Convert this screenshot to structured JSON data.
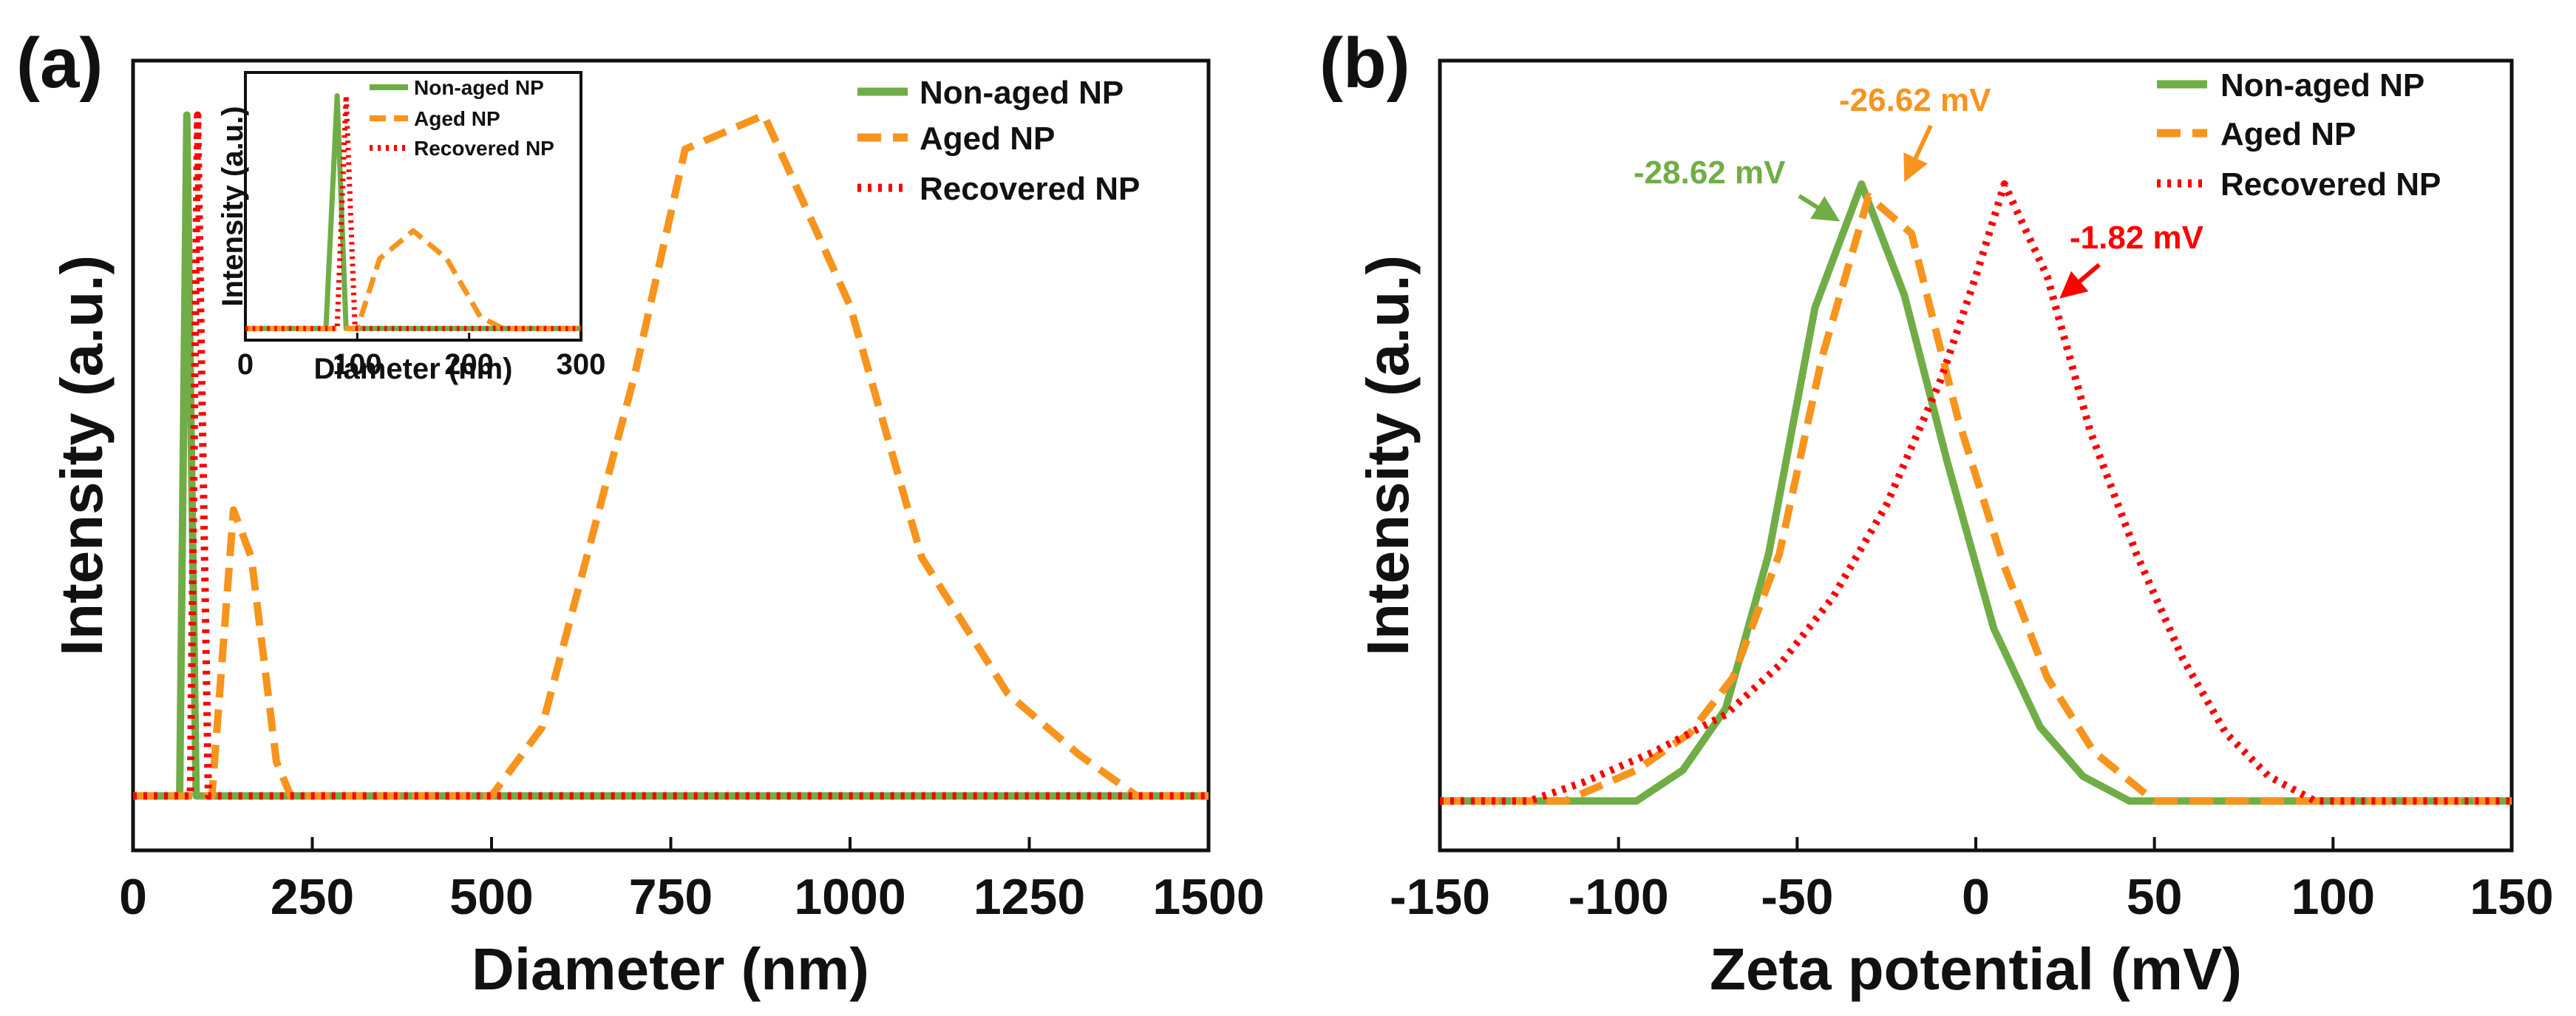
{
  "colors": {
    "non_aged": "#70ad47",
    "aged": "#f7941d",
    "recovered": "#ff0000",
    "axis": "#111111"
  },
  "chart_data": [
    {
      "panel": "(a)",
      "type": "line",
      "xlabel": "Diameter (nm)",
      "ylabel": "Intensity (a.u.)",
      "xlim": [
        0,
        1500
      ],
      "ylim": [
        -0.08,
        1.08
      ],
      "xticks": [
        "0",
        "250",
        "500",
        "750",
        "1000",
        "1250",
        "1500"
      ],
      "xtick_values": [
        0,
        250,
        500,
        750,
        1000,
        1250,
        1500
      ],
      "legend": [
        "Non-aged NP",
        "Aged NP",
        "Recovered NP"
      ],
      "legend_position": "top-right",
      "series": [
        {
          "name": "Non-aged NP",
          "style": "solid",
          "x": [
            0,
            65,
            75,
            88,
            100,
            1500
          ],
          "y": [
            0,
            0,
            1.0,
            0,
            0,
            0
          ]
        },
        {
          "name": "Aged NP",
          "style": "dashed",
          "x": [
            0,
            110,
            140,
            165,
            200,
            220,
            500,
            570,
            700,
            770,
            880,
            1000,
            1100,
            1220,
            1320,
            1400,
            1500
          ],
          "y": [
            0,
            0,
            0.42,
            0.35,
            0.05,
            0,
            0,
            0.1,
            0.62,
            0.95,
            1.0,
            0.72,
            0.35,
            0.15,
            0.06,
            0,
            0
          ]
        },
        {
          "name": "Recovered NP",
          "style": "dotted",
          "x": [
            0,
            80,
            90,
            105,
            120,
            1500
          ],
          "y": [
            0,
            0,
            1.0,
            0,
            0,
            0
          ]
        }
      ],
      "inset": {
        "xlabel": "Diameter (nm)",
        "ylabel": "Intensity (a.u.)",
        "xlim": [
          0,
          300
        ],
        "ylim": [
          -0.05,
          1.1
        ],
        "xticks": [
          "0",
          "100",
          "200",
          "300"
        ],
        "xtick_values": [
          0,
          100,
          200,
          300
        ],
        "legend": [
          "Non-aged NP",
          "Aged NP",
          "Recovered NP"
        ],
        "legend_position": "top-right",
        "series": [
          {
            "name": "Non-aged NP",
            "style": "solid",
            "x": [
              0,
              72,
              82,
              90,
              300
            ],
            "y": [
              0,
              0,
              1.0,
              0,
              0
            ]
          },
          {
            "name": "Aged NP",
            "style": "dashed",
            "x": [
              0,
              100,
              120,
              150,
              180,
              210,
              230,
              300
            ],
            "y": [
              0,
              0,
              0.3,
              0.42,
              0.3,
              0.05,
              0,
              0
            ]
          },
          {
            "name": "Recovered NP",
            "style": "dotted",
            "x": [
              0,
              82,
              90,
              98,
              300
            ],
            "y": [
              0,
              0,
              1.0,
              0,
              0
            ]
          }
        ]
      }
    },
    {
      "panel": "(b)",
      "type": "line",
      "xlabel": "Zeta potential (mV)",
      "ylabel": "Intensity (a.u.)",
      "xlim": [
        -150,
        150
      ],
      "ylim": [
        -0.08,
        1.2
      ],
      "xticks": [
        "-150",
        "-100",
        "-50",
        "0",
        "50",
        "100",
        "150"
      ],
      "xtick_values": [
        -150,
        -100,
        -50,
        0,
        50,
        100,
        150
      ],
      "legend": [
        "Non-aged NP",
        "Aged NP",
        "Recovered NP"
      ],
      "legend_position": "top-right",
      "series": [
        {
          "name": "Non-aged NP",
          "style": "solid",
          "x": [
            -150,
            -95,
            -82,
            -70,
            -58,
            -45,
            -32,
            -20,
            -8,
            5,
            18,
            30,
            43,
            150
          ],
          "y": [
            0,
            0,
            0.05,
            0.15,
            0.4,
            0.8,
            1.0,
            0.82,
            0.55,
            0.28,
            0.12,
            0.04,
            0,
            0
          ]
        },
        {
          "name": "Aged NP",
          "style": "dashed",
          "x": [
            -150,
            -115,
            -95,
            -80,
            -68,
            -55,
            -43,
            -30,
            -18,
            -5,
            8,
            20,
            33,
            50,
            150
          ],
          "y": [
            0,
            0,
            0.05,
            0.11,
            0.2,
            0.4,
            0.72,
            0.98,
            0.92,
            0.62,
            0.38,
            0.2,
            0.08,
            0,
            0
          ]
        },
        {
          "name": "Recovered NP",
          "style": "dotted",
          "x": [
            -150,
            -125,
            -110,
            -90,
            -70,
            -55,
            -40,
            -25,
            -10,
            0,
            8,
            20,
            32,
            45,
            58,
            70,
            82,
            95,
            150
          ],
          "y": [
            0,
            0,
            0.03,
            0.08,
            0.14,
            0.22,
            0.33,
            0.48,
            0.68,
            0.85,
            1.0,
            0.85,
            0.6,
            0.4,
            0.23,
            0.11,
            0.04,
            0,
            0
          ]
        }
      ],
      "annotations": [
        {
          "text": "-28.62 mV",
          "series": "Non-aged NP",
          "x": -28.62
        },
        {
          "text": "-26.62 mV",
          "series": "Aged NP",
          "x": -26.62
        },
        {
          "text": "-1.82 mV",
          "series": "Recovered NP",
          "x": -1.82
        }
      ]
    }
  ]
}
